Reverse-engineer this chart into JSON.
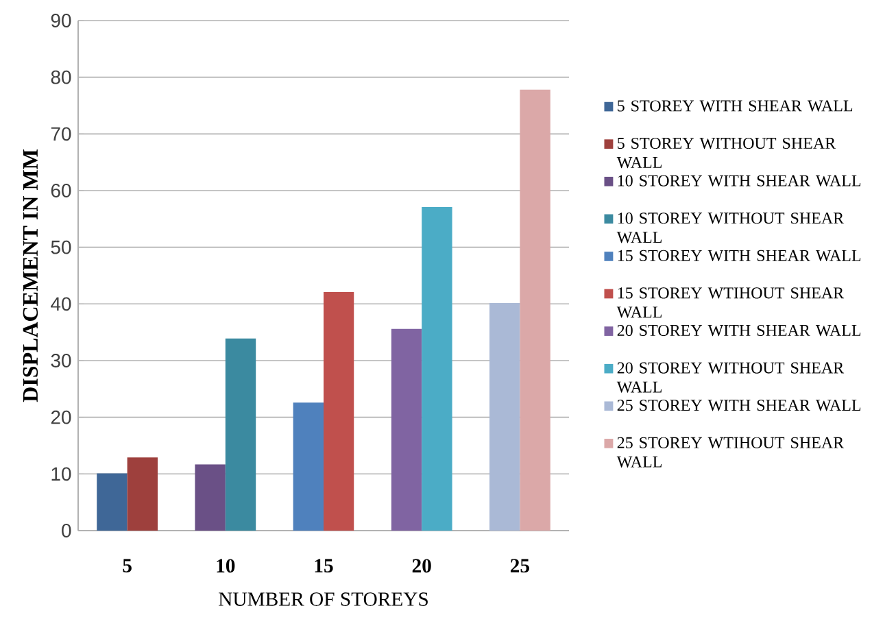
{
  "chart_data": {
    "type": "bar",
    "xlabel": "NUMBER OF STOREYS",
    "ylabel": "DISPLACEMENT IN MM",
    "categories": [
      "5",
      "10",
      "15",
      "20",
      "25"
    ],
    "series": [
      {
        "name": "5 STOREY WITH SHEAR WALL",
        "color": "#3f6797",
        "values": [
          10.1,
          null,
          null,
          null,
          null
        ]
      },
      {
        "name": "5 STOREY WITHOUT SHEAR WALL",
        "color": "#9e403d",
        "values": [
          12.9,
          null,
          null,
          null,
          null
        ]
      },
      {
        "name": "10 STOREY WITH SHEAR WALL",
        "color": "#6a5086",
        "values": [
          null,
          11.7,
          null,
          null,
          null
        ]
      },
      {
        "name": "10 STOREY WITHOUT SHEAR WALL",
        "color": "#3b8aa0",
        "values": [
          null,
          33.9,
          null,
          null,
          null
        ]
      },
      {
        "name": "15 STOREY WITH SHEAR WALL",
        "color": "#4f81bd",
        "values": [
          null,
          null,
          22.6,
          null,
          null
        ]
      },
      {
        "name": "15 STOREY WTIHOUT SHEAR WALL",
        "color": "#c0504d",
        "values": [
          null,
          null,
          42.1,
          null,
          null
        ]
      },
      {
        "name": "20 STOREY WITH SHEAR WALL",
        "color": "#8064a2",
        "values": [
          null,
          null,
          null,
          35.6,
          null
        ]
      },
      {
        "name": "20 STOREY WITHOUT SHEAR WALL",
        "color": "#4bacc6",
        "values": [
          null,
          null,
          null,
          57.1,
          null
        ]
      },
      {
        "name": "25 STOREY WITH SHEAR WALL",
        "color": "#aab9d6",
        "values": [
          null,
          null,
          null,
          null,
          40.2
        ]
      },
      {
        "name": "25 STOREY WTIHOUT SHEAR WALL",
        "color": "#dba8a8",
        "values": [
          null,
          null,
          null,
          null,
          77.8
        ]
      }
    ],
    "ylim": [
      0,
      90
    ],
    "yticks": [
      0,
      10,
      20,
      30,
      40,
      50,
      60,
      70,
      80,
      90
    ],
    "grid": "y",
    "legend": "right"
  }
}
